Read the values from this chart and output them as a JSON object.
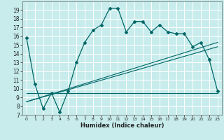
{
  "xlabel": "Humidex (Indice chaleur)",
  "bg_color": "#c8ecec",
  "line_color": "#006666",
  "xlim": [
    -0.5,
    23.5
  ],
  "ylim": [
    7,
    20
  ],
  "yticks": [
    7,
    8,
    9,
    10,
    11,
    12,
    13,
    14,
    15,
    16,
    17,
    18,
    19
  ],
  "xticks": [
    0,
    1,
    2,
    3,
    4,
    5,
    6,
    7,
    8,
    9,
    10,
    11,
    12,
    13,
    14,
    15,
    16,
    17,
    18,
    19,
    20,
    21,
    22,
    23
  ],
  "main_x": [
    0,
    1,
    2,
    3,
    4,
    5,
    6,
    7,
    8,
    9,
    10,
    11,
    12,
    13,
    14,
    15,
    16,
    17,
    18,
    19,
    20,
    21,
    22,
    23
  ],
  "main_y": [
    15.8,
    10.5,
    7.7,
    9.5,
    7.3,
    9.7,
    13.0,
    15.3,
    16.7,
    17.3,
    19.2,
    19.2,
    16.5,
    17.7,
    17.7,
    16.5,
    17.3,
    16.5,
    16.3,
    16.3,
    14.8,
    15.3,
    13.3,
    9.7
  ],
  "line2_x": [
    0,
    23
  ],
  "line2_y": [
    8.5,
    15.3
  ],
  "line3_x": [
    0,
    23
  ],
  "line3_y": [
    9.5,
    9.5
  ],
  "line4_x": [
    0,
    23
  ],
  "line4_y": [
    8.5,
    14.8
  ]
}
